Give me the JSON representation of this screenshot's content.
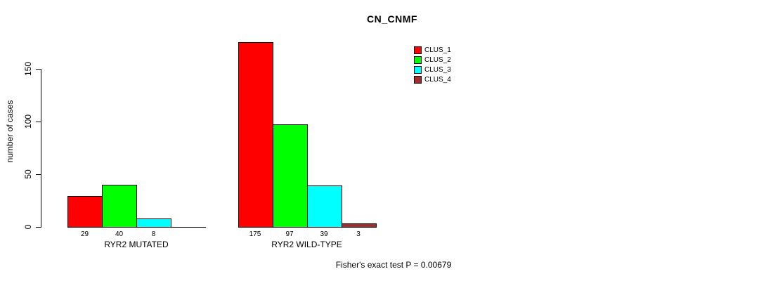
{
  "chart_data": {
    "type": "bar",
    "title": "CN_CNMF",
    "xlabel": "",
    "ylabel": "number of cases",
    "categories": [
      "RYR2 MUTATED",
      "RYR2 WILD-TYPE"
    ],
    "series": [
      {
        "name": "CLUS_1",
        "color": "#ff0000",
        "values": [
          29,
          175
        ]
      },
      {
        "name": "CLUS_2",
        "color": "#00ff00",
        "values": [
          40,
          97
        ]
      },
      {
        "name": "CLUS_3",
        "color": "#00ffff",
        "values": [
          8,
          39
        ]
      },
      {
        "name": "CLUS_4",
        "color": "#a52a2a",
        "values": [
          0,
          3
        ]
      }
    ],
    "bar_value_labels": [
      [
        "29",
        "40",
        "8",
        ""
      ],
      [
        "175",
        "97",
        "39",
        "3"
      ]
    ],
    "yticks": [
      0,
      50,
      100,
      150
    ],
    "ylim": [
      0,
      175
    ],
    "grid": false,
    "legend_position": "top-right",
    "annotation": "Fisher's exact test P = 0.00679",
    "colors": {
      "background": "#ffffff",
      "axis": "#000000",
      "text": "#000000"
    }
  }
}
